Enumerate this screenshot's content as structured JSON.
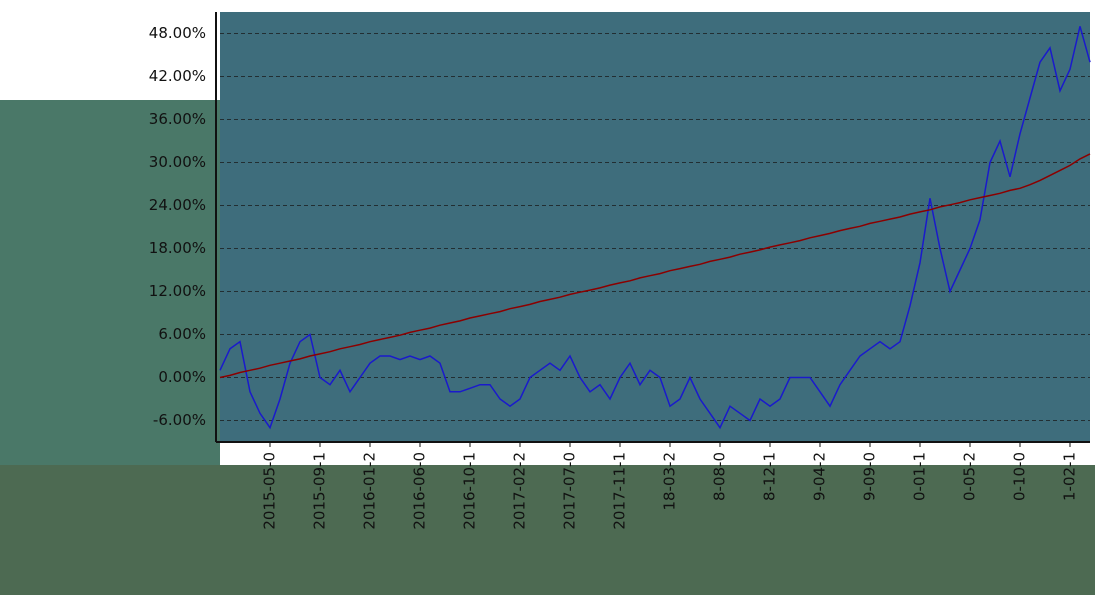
{
  "chart_data": {
    "type": "line",
    "categories": [
      null,
      null,
      null,
      null,
      null,
      "2015-05-0",
      null,
      null,
      null,
      null,
      "2015-09-1",
      null,
      null,
      null,
      null,
      "2016-01-2",
      null,
      null,
      null,
      null,
      "2016-06-0",
      null,
      null,
      null,
      null,
      "2016-10-1",
      null,
      null,
      null,
      null,
      "2017-02-2",
      null,
      null,
      null,
      null,
      "2017-07-0",
      null,
      null,
      null,
      null,
      "2017-11-1",
      null,
      null,
      null,
      null,
      "18-03-2",
      null,
      null,
      null,
      null,
      "8-08-0",
      null,
      null,
      null,
      null,
      "8-12-1",
      null,
      null,
      null,
      null,
      "9-04-2",
      null,
      null,
      null,
      null,
      "9-09-0",
      null,
      null,
      null,
      null,
      "0-01-1",
      null,
      null,
      null,
      null,
      "0-05-2",
      null,
      null,
      null,
      null,
      "0-10-0",
      null,
      null,
      null,
      null,
      "1-02-1",
      null,
      null
    ],
    "series": [
      {
        "color": "#1a1acc",
        "values": [
          1,
          4,
          5,
          -2,
          -5,
          -7,
          -3,
          2,
          5,
          6,
          0,
          -1,
          1,
          -2,
          0,
          2,
          3,
          3,
          2.5,
          3,
          2.5,
          3,
          2,
          -2,
          -2,
          -1.5,
          -1,
          -1,
          -3,
          -4,
          -3,
          0,
          1,
          2,
          1,
          3,
          0,
          -2,
          -1,
          -3,
          0,
          2,
          -1,
          1,
          0,
          -4,
          -3,
          0,
          -3,
          -5,
          -7,
          -4,
          -5,
          -6,
          -3,
          -4,
          -3,
          0,
          0,
          0,
          -2,
          -4,
          -1,
          1,
          3,
          4,
          5,
          4,
          5,
          10,
          16,
          25,
          18,
          12,
          15,
          18,
          22,
          30,
          33,
          28,
          34,
          39,
          44,
          46,
          40,
          43,
          49,
          44
        ]
      },
      {
        "color": "#8b0000",
        "values": [
          0,
          0.3,
          0.7,
          1,
          1.3,
          1.7,
          2,
          2.3,
          2.6,
          3,
          3.3,
          3.6,
          4,
          4.3,
          4.6,
          5,
          5.3,
          5.6,
          5.9,
          6.3,
          6.6,
          6.9,
          7.3,
          7.6,
          7.9,
          8.3,
          8.6,
          8.9,
          9.2,
          9.6,
          9.9,
          10.2,
          10.6,
          10.9,
          11.2,
          11.6,
          11.9,
          12.2,
          12.5,
          12.9,
          13.2,
          13.5,
          13.9,
          14.2,
          14.5,
          14.9,
          15.2,
          15.5,
          15.8,
          16.2,
          16.5,
          16.8,
          17.2,
          17.5,
          17.8,
          18.2,
          18.5,
          18.8,
          19.1,
          19.5,
          19.8,
          20.1,
          20.5,
          20.8,
          21.1,
          21.5,
          21.8,
          22.1,
          22.4,
          22.8,
          23.1,
          23.4,
          23.8,
          24.1,
          24.4,
          24.8,
          25.1,
          25.4,
          25.7,
          26.1,
          26.4,
          26.9,
          27.5,
          28.2,
          28.9,
          29.6,
          30.5,
          31.2
        ]
      }
    ],
    "ylim": [
      -9,
      51
    ],
    "yticks": [
      {
        "value": -6,
        "label": "-6.00%"
      },
      {
        "value": 0,
        "label": "0.00%"
      },
      {
        "value": 6,
        "label": "6.00%"
      },
      {
        "value": 12,
        "label": "12.00%"
      },
      {
        "value": 18,
        "label": "18.00%"
      },
      {
        "value": 24,
        "label": "24.00%"
      },
      {
        "value": 30,
        "label": "30.00%"
      },
      {
        "value": 36,
        "label": "36.00%"
      },
      {
        "value": 42,
        "label": "42.00%"
      },
      {
        "value": 48,
        "label": "48.00%"
      }
    ],
    "grid": true
  }
}
